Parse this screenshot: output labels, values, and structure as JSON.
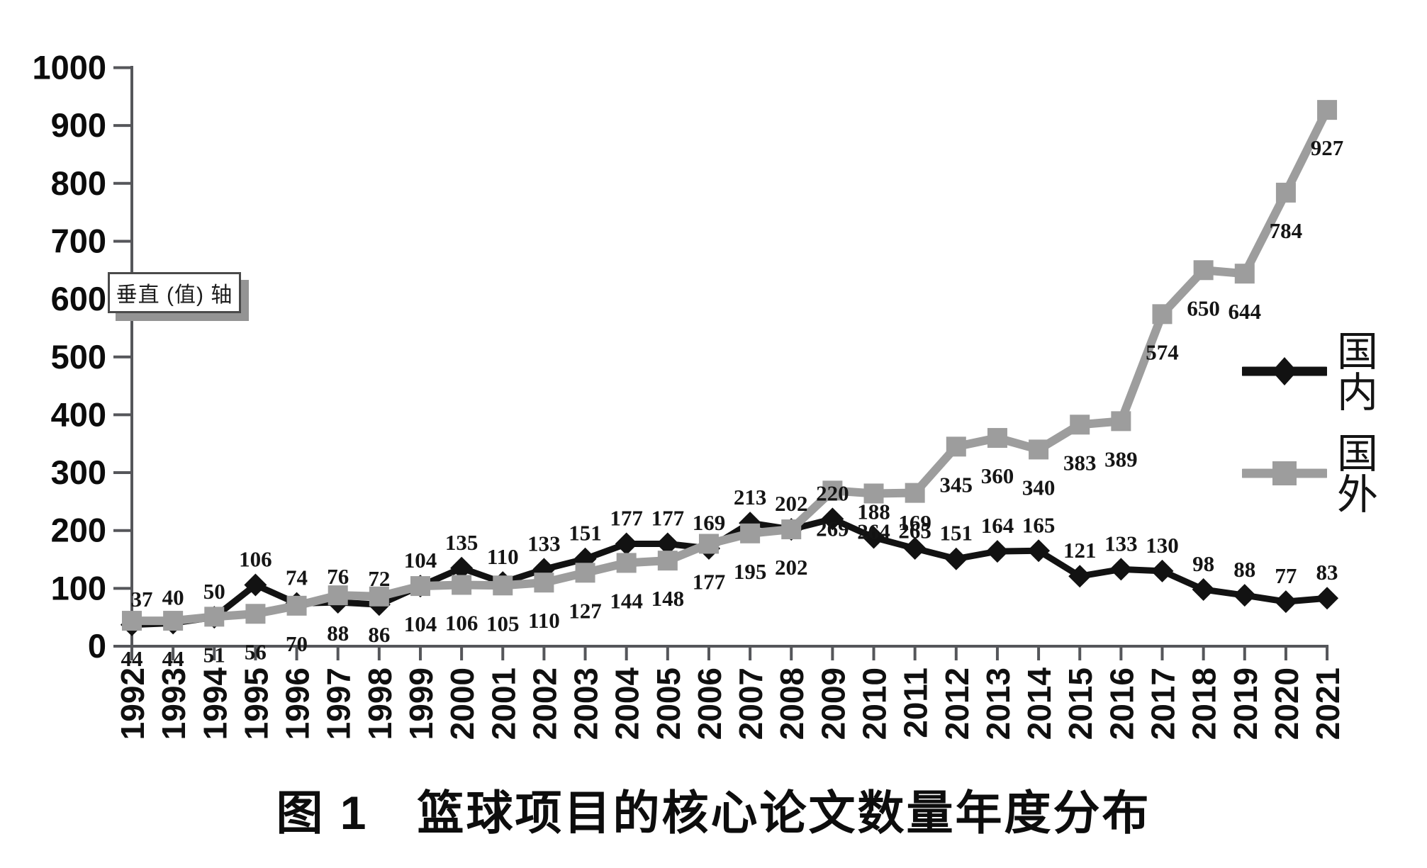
{
  "figure_title": "图 1　篮球项目的核心论文数量年度分布",
  "vertical_axis_label_box": "垂直 (值) 轴",
  "legend": {
    "items": [
      {
        "label": "国内",
        "marker": "diamond-line-icon",
        "color": "#121212"
      },
      {
        "label": "国外",
        "marker": "square-line-icon",
        "color": "#9d9d9d"
      }
    ]
  },
  "chart_data": {
    "type": "line",
    "title": "图 1　篮球项目的核心论文数量年度分布",
    "x_categories": [
      "1992",
      "1993",
      "1994",
      "1995",
      "1996",
      "1997",
      "1998",
      "1999",
      "2000",
      "2001",
      "2002",
      "2003",
      "2004",
      "2005",
      "2006",
      "2007",
      "2008",
      "2009",
      "2010",
      "2011",
      "2012",
      "2013",
      "2014",
      "2015",
      "2016",
      "2017",
      "2018",
      "2019",
      "2020",
      "2021"
    ],
    "series": [
      {
        "name": "国内",
        "marker": "diamond",
        "color": "#121212",
        "label_position": "above",
        "values": [
          37,
          40,
          50,
          106,
          74,
          76,
          72,
          104,
          135,
          110,
          133,
          151,
          177,
          177,
          169,
          213,
          202,
          220,
          188,
          169,
          151,
          164,
          165,
          121,
          133,
          130,
          98,
          88,
          77,
          83
        ]
      },
      {
        "name": "国外",
        "marker": "square",
        "color": "#9d9d9d",
        "label_position": "below",
        "values": [
          44,
          44,
          51,
          56,
          70,
          88,
          86,
          104,
          106,
          105,
          110,
          127,
          144,
          148,
          177,
          195,
          202,
          269,
          264,
          265,
          345,
          360,
          340,
          383,
          389,
          574,
          650,
          644,
          784,
          927
        ]
      }
    ],
    "ylim": [
      0,
      1000
    ],
    "ytick_interval": 100,
    "yticks": [
      0,
      100,
      200,
      300,
      400,
      500,
      600,
      700,
      800,
      900,
      1000
    ],
    "grid": false,
    "data_labels": true,
    "legend_position": "middle-right",
    "axis_color": "#55565a",
    "ylabel_box": "垂直 (值) 轴"
  }
}
